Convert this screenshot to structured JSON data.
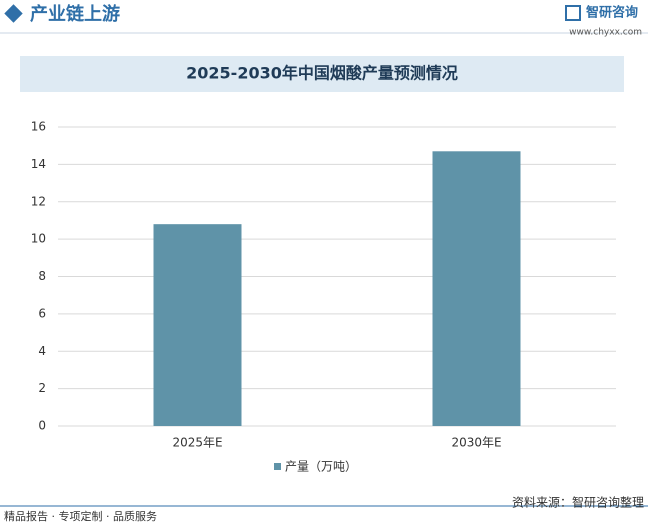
{
  "header": {
    "title": "产业链上游",
    "logo": "智研咨询",
    "url": "www.chyxx.com"
  },
  "chart_data": {
    "type": "bar",
    "title": "2025-2030年中国烟酸产量预测情况",
    "categories": [
      "2025年E",
      "2030年E"
    ],
    "series": [
      {
        "name": "产量（万吨）",
        "color": "#5f93a8",
        "values": [
          10.8,
          14.7
        ]
      }
    ],
    "ylim": [
      0,
      16
    ],
    "yticks": [
      0,
      2,
      4,
      6,
      8,
      10,
      12,
      14,
      16
    ],
    "grid": true
  },
  "footer": {
    "left": "精品报告 · 专项定制 · 品质服务",
    "source": "资料来源：智研咨询整理"
  }
}
